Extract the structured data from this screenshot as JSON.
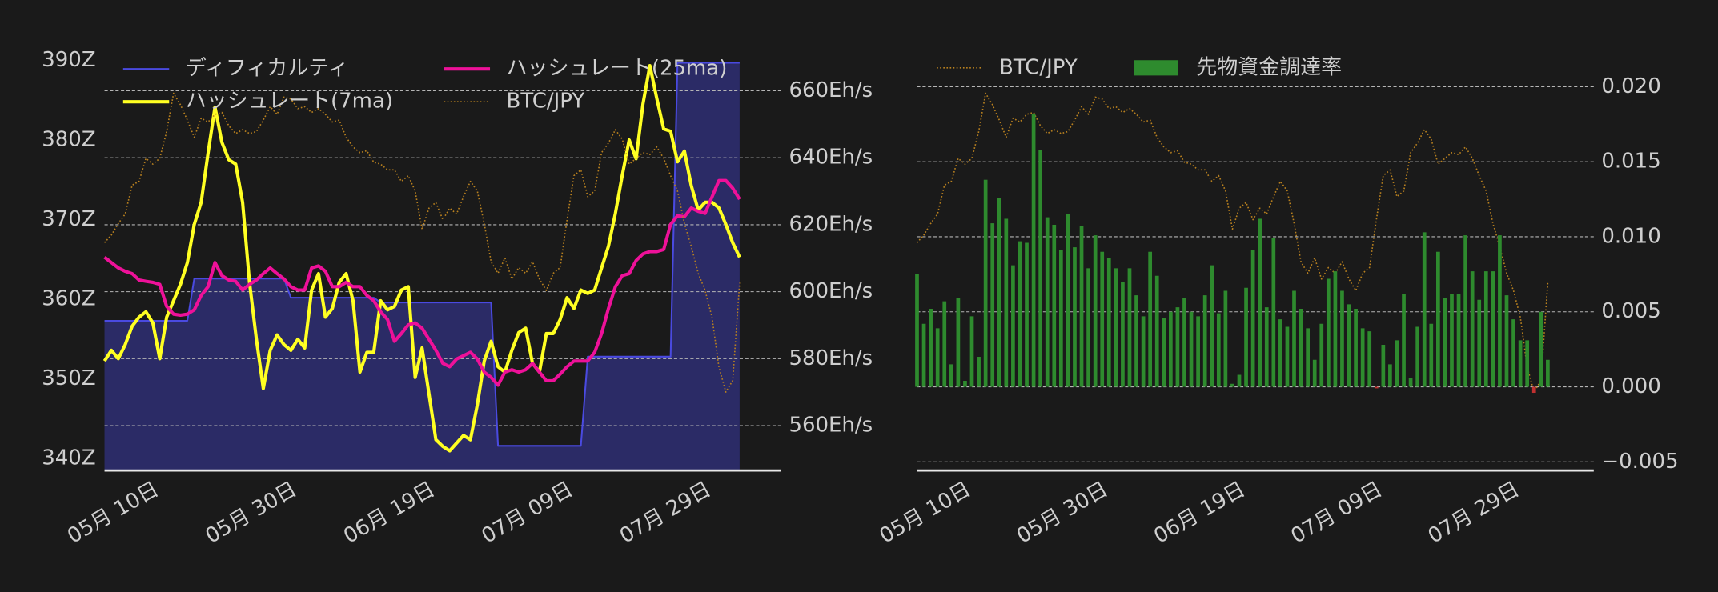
{
  "chart_data": [
    {
      "type": "line",
      "x": [
        "05-03",
        "05-04",
        "05-05",
        "05-06",
        "05-07",
        "05-08",
        "05-09",
        "05-10",
        "05-11",
        "05-12",
        "05-13",
        "05-14",
        "05-15",
        "05-16",
        "05-17",
        "05-18",
        "05-19",
        "05-20",
        "05-21",
        "05-22",
        "05-23",
        "05-24",
        "05-25",
        "05-26",
        "05-27",
        "05-28",
        "05-29",
        "05-30",
        "05-31",
        "06-01",
        "06-02",
        "06-03",
        "06-04",
        "06-05",
        "06-06",
        "06-07",
        "06-08",
        "06-09",
        "06-10",
        "06-11",
        "06-12",
        "06-13",
        "06-14",
        "06-15",
        "06-16",
        "06-17",
        "06-18",
        "06-19",
        "06-20",
        "06-21",
        "06-22",
        "06-23",
        "06-24",
        "06-25",
        "06-26",
        "06-27",
        "06-28",
        "06-29",
        "06-30",
        "07-01",
        "07-02",
        "07-03",
        "07-04",
        "07-05",
        "07-06",
        "07-07",
        "07-08",
        "07-09",
        "07-10",
        "07-11",
        "07-12",
        "07-13",
        "07-14",
        "07-15",
        "07-16",
        "07-17",
        "07-18",
        "07-19",
        "07-20",
        "07-21",
        "07-22",
        "07-23",
        "07-24",
        "07-25",
        "07-26",
        "07-27",
        "07-28",
        "07-29",
        "07-30",
        "07-31",
        "08-01",
        "08-02",
        "08-03"
      ],
      "xticks": [
        {
          "value": "05-10",
          "label": "05月 10日"
        },
        {
          "value": "05-30",
          "label": "05月 30日"
        },
        {
          "value": "06-19",
          "label": "06月 19日"
        },
        {
          "value": "07-09",
          "label": "07月 09日"
        },
        {
          "value": "07-29",
          "label": "07月 29日"
        }
      ],
      "ylim": [
        338.5,
        391.4
      ],
      "yticks": [
        {
          "value": 340,
          "label": "340Z"
        },
        {
          "value": 350,
          "label": "350Z"
        },
        {
          "value": 360,
          "label": "360Z"
        },
        {
          "value": 370,
          "label": "370Z"
        },
        {
          "value": 380,
          "label": "380Z"
        },
        {
          "value": 390,
          "label": "390Z"
        }
      ],
      "y2lim": [
        546.6,
        672.4
      ],
      "y2ticks": [
        {
          "value": 560,
          "label": "560Eh/s"
        },
        {
          "value": 580,
          "label": "580Eh/s"
        },
        {
          "value": 600,
          "label": "600Eh/s"
        },
        {
          "value": 620,
          "label": "620Eh/s"
        },
        {
          "value": 640,
          "label": "640Eh/s"
        },
        {
          "value": 660,
          "label": "660Eh/s"
        }
      ],
      "y3lim": [
        900,
        1120
      ],
      "grid_axis": "y2",
      "series": [
        {
          "name": "ディフィカルティ",
          "color": "#4a4ae0",
          "fill_color": "#2b2b66",
          "fill": true,
          "axis": "y",
          "values": [
            357.3,
            357.3,
            357.3,
            357.3,
            357.3,
            357.3,
            357.3,
            357.3,
            357.3,
            357.3,
            357.3,
            357.3,
            357.3,
            362.6,
            362.6,
            362.6,
            362.6,
            362.6,
            362.6,
            362.6,
            362.6,
            362.6,
            362.6,
            362.6,
            362.6,
            362.6,
            362.6,
            360.2,
            360.2,
            360.2,
            360.2,
            360.2,
            360.2,
            360.2,
            360.2,
            360.2,
            360.2,
            360.2,
            360.2,
            360.2,
            359.6,
            359.6,
            359.6,
            359.6,
            359.6,
            359.6,
            359.6,
            359.6,
            359.6,
            359.6,
            359.6,
            359.6,
            359.6,
            359.6,
            359.6,
            359.6,
            359.6,
            341.6,
            341.6,
            341.6,
            341.6,
            341.6,
            341.6,
            341.6,
            341.6,
            341.6,
            341.6,
            341.6,
            341.6,
            341.6,
            352.8,
            352.8,
            352.8,
            352.8,
            352.8,
            352.8,
            352.8,
            352.8,
            352.8,
            352.8,
            352.8,
            352.8,
            352.8,
            389.7,
            389.7,
            389.7,
            389.7,
            389.7,
            389.7,
            389.7,
            389.7,
            389.7,
            389.7
          ]
        },
        {
          "name": "ハッシュレート(7ma)",
          "color": "#ffff22",
          "width": 3,
          "axis": "y2",
          "values": [
            579.3,
            582.5,
            580.0,
            584.2,
            589.7,
            592.4,
            594.0,
            590.7,
            580.0,
            592.4,
            597.3,
            602.2,
            608.7,
            620.1,
            626.7,
            641.4,
            655.1,
            644.6,
            639.4,
            638.1,
            626.7,
            602.8,
            585.8,
            571.1,
            582.5,
            587.1,
            584.2,
            582.5,
            585.8,
            583.2,
            600.5,
            605.4,
            592.4,
            595.0,
            602.8,
            605.4,
            597.3,
            576.0,
            581.9,
            581.9,
            597.3,
            594.6,
            595.6,
            600.5,
            601.5,
            574.4,
            583.2,
            569.5,
            555.8,
            553.8,
            552.5,
            554.8,
            557.1,
            555.8,
            566.2,
            579.3,
            585.2,
            577.6,
            576.0,
            582.5,
            587.8,
            589.1,
            578.6,
            576.0,
            587.5,
            587.5,
            591.7,
            598.2,
            595.0,
            600.5,
            599.5,
            600.5,
            607.1,
            613.6,
            623.4,
            634.8,
            645.3,
            639.7,
            656.1,
            667.5,
            657.7,
            648.6,
            647.9,
            638.8,
            642.0,
            631.6,
            624.4,
            626.7,
            626.7,
            625.0,
            620.1,
            614.6,
            610.3
          ]
        },
        {
          "name": "ハッシュレート(25ma)",
          "color": "#ee1199",
          "width": 3,
          "axis": "y2",
          "values": [
            610.3,
            608.7,
            607.1,
            606.1,
            605.4,
            603.5,
            603.1,
            602.8,
            602.2,
            595.6,
            593.3,
            593.0,
            593.3,
            594.6,
            598.9,
            601.5,
            608.7,
            604.8,
            603.5,
            603.1,
            600.5,
            602.2,
            603.5,
            605.4,
            607.1,
            605.4,
            603.8,
            601.5,
            600.5,
            600.5,
            607.1,
            607.7,
            606.1,
            601.5,
            601.5,
            602.8,
            601.5,
            601.5,
            598.9,
            597.3,
            594.0,
            591.7,
            585.2,
            587.5,
            590.1,
            590.7,
            589.1,
            585.8,
            582.5,
            578.6,
            577.6,
            579.9,
            580.9,
            581.9,
            579.9,
            576.0,
            574.4,
            572.1,
            576.0,
            576.7,
            576.0,
            576.7,
            578.6,
            576.0,
            573.4,
            573.4,
            575.4,
            577.6,
            579.3,
            579.3,
            579.3,
            581.9,
            587.5,
            595.0,
            601.5,
            604.8,
            605.4,
            609.3,
            611.3,
            612.0,
            612.0,
            612.6,
            620.1,
            622.7,
            622.4,
            625.0,
            624.0,
            623.4,
            628.3,
            633.2,
            633.2,
            630.9,
            627.6
          ]
        },
        {
          "name": "BTC/JPY",
          "color": "#b8801f",
          "width": 1.2,
          "dash": true,
          "axis": "y3",
          "values": [
            1019,
            1023,
            1029,
            1034,
            1049,
            1051,
            1063,
            1060,
            1063,
            1077,
            1097,
            1091,
            1083,
            1074,
            1084,
            1082,
            1086,
            1087,
            1080,
            1076,
            1078,
            1076,
            1077,
            1083,
            1090,
            1086,
            1095,
            1094,
            1089,
            1090,
            1087,
            1089,
            1086,
            1082,
            1083,
            1074,
            1069,
            1066,
            1067,
            1061,
            1060,
            1057,
            1057,
            1051,
            1054,
            1046,
            1026,
            1037,
            1040,
            1031,
            1037,
            1034,
            1043,
            1051,
            1046,
            1029,
            1009,
            1003,
            1011,
            1000,
            1006,
            1003,
            1009,
            1000,
            994,
            1003,
            1006,
            1031,
            1054,
            1057,
            1043,
            1046,
            1066,
            1071,
            1078,
            1073,
            1060,
            1063,
            1066,
            1065,
            1069,
            1063,
            1054,
            1046,
            1029,
            1017,
            1003,
            994,
            980,
            954,
            941,
            947,
            998
          ]
        }
      ]
    },
    {
      "type": "bar",
      "x": [
        "05-03",
        "05-04",
        "05-05",
        "05-06",
        "05-07",
        "05-08",
        "05-09",
        "05-10",
        "05-11",
        "05-12",
        "05-13",
        "05-14",
        "05-15",
        "05-16",
        "05-17",
        "05-18",
        "05-19",
        "05-20",
        "05-21",
        "05-22",
        "05-23",
        "05-24",
        "05-25",
        "05-26",
        "05-27",
        "05-28",
        "05-29",
        "05-30",
        "05-31",
        "06-01",
        "06-02",
        "06-03",
        "06-04",
        "06-05",
        "06-06",
        "06-07",
        "06-08",
        "06-09",
        "06-10",
        "06-11",
        "06-12",
        "06-13",
        "06-14",
        "06-15",
        "06-16",
        "06-17",
        "06-18",
        "06-19",
        "06-20",
        "06-21",
        "06-22",
        "06-23",
        "06-24",
        "06-25",
        "06-26",
        "06-27",
        "06-28",
        "06-29",
        "06-30",
        "07-01",
        "07-02",
        "07-03",
        "07-04",
        "07-05",
        "07-06",
        "07-07",
        "07-08",
        "07-09",
        "07-10",
        "07-11",
        "07-12",
        "07-13",
        "07-14",
        "07-15",
        "07-16",
        "07-17",
        "07-18",
        "07-19",
        "07-20",
        "07-21",
        "07-22",
        "07-23",
        "07-24",
        "07-25",
        "07-26",
        "07-27",
        "07-28",
        "07-29",
        "07-30",
        "07-31",
        "08-01",
        "08-02",
        "08-03"
      ],
      "xticks": [
        {
          "value": "05-10",
          "label": "05月 10日"
        },
        {
          "value": "05-30",
          "label": "05月 30日"
        },
        {
          "value": "06-19",
          "label": "06月 19日"
        },
        {
          "value": "07-09",
          "label": "07月 09日"
        },
        {
          "value": "07-29",
          "label": "07月 29日"
        }
      ],
      "ylim": [
        -0.00558,
        0.0225
      ],
      "yticks": [
        {
          "value": -0.005,
          "label": "−0.005"
        },
        {
          "value": 0,
          "label": "0.000"
        },
        0.005,
        {
          "value": 0.01,
          "label": "0.010"
        },
        0.015,
        {
          "value": 0.02,
          "label": "0.020"
        }
      ],
      "y3lim": [
        900,
        1120
      ],
      "grid_axis": "y",
      "series": [
        {
          "name": "BTC/JPY",
          "type": "line",
          "color": "#b8801f",
          "width": 1.2,
          "dash": true,
          "axis": "y3",
          "values": [
            1019,
            1023,
            1029,
            1034,
            1049,
            1051,
            1063,
            1060,
            1063,
            1077,
            1097,
            1091,
            1083,
            1074,
            1084,
            1082,
            1086,
            1087,
            1080,
            1076,
            1078,
            1076,
            1077,
            1083,
            1090,
            1086,
            1095,
            1094,
            1089,
            1090,
            1087,
            1089,
            1086,
            1082,
            1083,
            1074,
            1069,
            1066,
            1067,
            1061,
            1060,
            1057,
            1057,
            1051,
            1054,
            1046,
            1026,
            1037,
            1040,
            1031,
            1037,
            1034,
            1043,
            1051,
            1046,
            1029,
            1009,
            1003,
            1011,
            1000,
            1006,
            1003,
            1009,
            1000,
            994,
            1003,
            1006,
            1031,
            1054,
            1057,
            1043,
            1046,
            1066,
            1071,
            1078,
            1073,
            1060,
            1063,
            1066,
            1065,
            1069,
            1063,
            1054,
            1046,
            1029,
            1017,
            1003,
            994,
            980,
            954,
            941,
            947,
            998
          ]
        },
        {
          "name": "先物資金調達率",
          "type": "bar",
          "color": "#2e8b2e",
          "negative_color": "#c03030",
          "axis": "y",
          "values": [
            0.0075,
            0.0042,
            0.0052,
            0.0039,
            0.0057,
            0.0015,
            0.0059,
            0.0004,
            0.0047,
            0.002,
            0.0138,
            0.0109,
            0.0126,
            0.0112,
            0.0081,
            0.0097,
            0.0096,
            0.0182,
            0.0158,
            0.0113,
            0.0108,
            0.0091,
            0.0115,
            0.0093,
            0.0107,
            0.0079,
            0.0101,
            0.009,
            0.0086,
            0.0079,
            0.007,
            0.0079,
            0.0061,
            0.0047,
            0.009,
            0.0074,
            0.0046,
            0.005,
            0.0053,
            0.0059,
            0.005,
            0.0047,
            0.0061,
            0.0081,
            0.0049,
            0.0064,
            0.0002,
            0.0008,
            0.0066,
            0.0091,
            0.0112,
            0.0053,
            0.0099,
            0.0045,
            0.004,
            0.0064,
            0.0052,
            0.0039,
            0.0018,
            0.0042,
            0.0072,
            0.0077,
            0.0064,
            0.0055,
            0.0052,
            0.0039,
            0.0037,
            -0.0001,
            0.0028,
            0.0015,
            0.0031,
            0.0062,
            0.0006,
            0.004,
            0.0103,
            0.0042,
            0.009,
            0.0059,
            0.0062,
            0.0062,
            0.0101,
            0.0077,
            0.0058,
            0.0077,
            0.0077,
            0.0101,
            0.0061,
            0.0045,
            0.0031,
            0.0031,
            -0.0004,
            0.005,
            0.0018
          ]
        }
      ]
    }
  ]
}
